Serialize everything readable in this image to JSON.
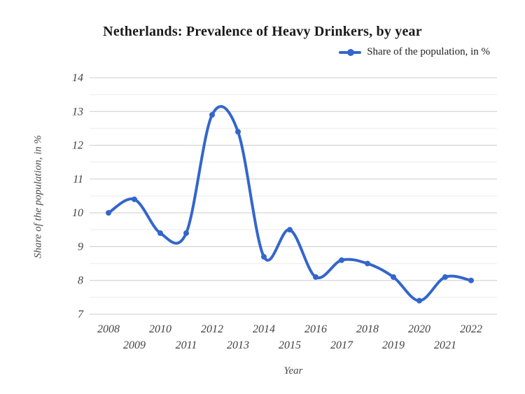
{
  "title": "Netherlands: Prevalence of Heavy Drinkers, by year",
  "legend": {
    "label": "Share of the population, in %",
    "marker": "line-with-dot"
  },
  "chart_data": {
    "type": "line",
    "title": "Netherlands: Prevalence of Heavy Drinkers, by year",
    "xlabel": "Year",
    "ylabel": "Share of the population, in %",
    "x": [
      2008,
      2009,
      2010,
      2011,
      2012,
      2013,
      2014,
      2015,
      2016,
      2017,
      2018,
      2019,
      2020,
      2021,
      2022
    ],
    "series": [
      {
        "name": "Share of the population, in %",
        "values": [
          10.0,
          10.4,
          9.4,
          9.4,
          12.9,
          12.4,
          8.7,
          9.5,
          8.1,
          8.6,
          8.5,
          8.1,
          7.4,
          8.1,
          8.0
        ]
      }
    ],
    "ylim": [
      7,
      14
    ],
    "ytick_step": 1,
    "minor_grid_step": 0.5,
    "grid": "horizontal",
    "smooth": true,
    "markers": true,
    "x_tick_stagger": true,
    "legend_position": "top-right",
    "colors": {
      "series": "#3366CC",
      "major_grid": "#cccccc",
      "minor_grid": "#ebebeb",
      "tick_text": "#424242",
      "title_text": "#1a1a1a",
      "axis_title_text": "#4a4a4a",
      "background": "#ffffff"
    }
  }
}
